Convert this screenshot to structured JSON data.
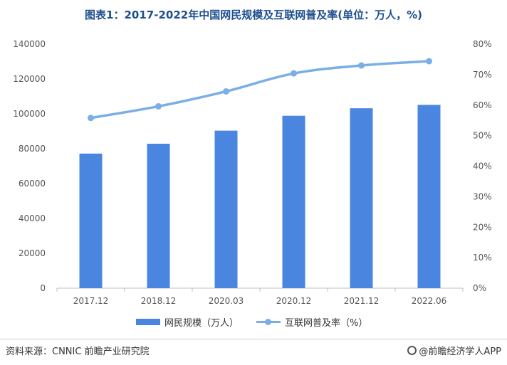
{
  "title": "图表1：2017-2022年中国网民规模及互联网普及率(单位：万人，%)",
  "footer": {
    "source": "资料来源：CNNIC 前瞻产业研究院",
    "brand": "@前瞻经济学人APP"
  },
  "colors": {
    "bar": "#4a86e0",
    "line": "#7aaee6",
    "title": "#1f4f8f"
  },
  "chart_data": {
    "type": "bar+line",
    "categories": [
      "2017.12",
      "2018.12",
      "2020.03",
      "2020.12",
      "2021.12",
      "2022.06"
    ],
    "series": [
      {
        "name": "网民规模（万人）",
        "type": "bar",
        "axis": "left",
        "values": [
          77198,
          82851,
          90359,
          98899,
          103195,
          105144
        ]
      },
      {
        "name": "互联网普及率（%）",
        "type": "line",
        "axis": "right",
        "values": [
          55.8,
          59.6,
          64.5,
          70.4,
          73.0,
          74.4
        ]
      }
    ],
    "y_left": {
      "min": 0,
      "max": 140000,
      "step": 20000,
      "tick_labels": [
        "0",
        "20000",
        "40000",
        "60000",
        "80000",
        "100000",
        "120000",
        "140000"
      ]
    },
    "y_right": {
      "min": 0,
      "max": 80,
      "step": 10,
      "tick_labels": [
        "0%",
        "10%",
        "20%",
        "30%",
        "40%",
        "50%",
        "60%",
        "70%",
        "80%"
      ]
    },
    "legend_position": "bottom",
    "grid": false
  }
}
